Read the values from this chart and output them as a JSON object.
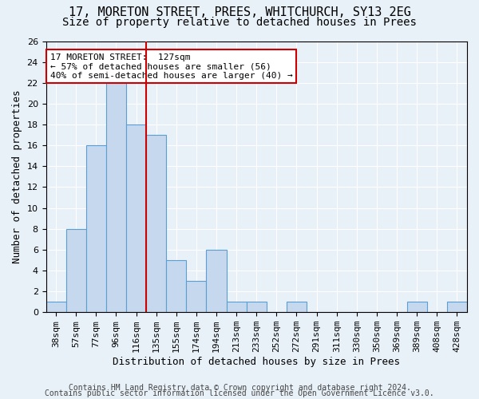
{
  "title": "17, MORETON STREET, PREES, WHITCHURCH, SY13 2EG",
  "subtitle": "Size of property relative to detached houses in Prees",
  "xlabel": "Distribution of detached houses by size in Prees",
  "ylabel": "Number of detached properties",
  "bin_labels": [
    "38sqm",
    "57sqm",
    "77sqm",
    "96sqm",
    "116sqm",
    "135sqm",
    "155sqm",
    "174sqm",
    "194sqm",
    "213sqm",
    "233sqm",
    "252sqm",
    "272sqm",
    "291sqm",
    "311sqm",
    "330sqm",
    "350sqm",
    "369sqm",
    "389sqm",
    "408sqm",
    "428sqm"
  ],
  "bar_values": [
    1,
    8,
    16,
    22,
    18,
    17,
    5,
    3,
    6,
    1,
    1,
    0,
    1,
    0,
    0,
    0,
    0,
    0,
    1,
    0,
    1
  ],
  "bar_color": "#c5d8ed",
  "bar_edge_color": "#5a9fd4",
  "annotation_box_text": "17 MORETON STREET:  127sqm\n← 57% of detached houses are smaller (56)\n40% of semi-detached houses are larger (40) →",
  "annotation_box_color": "#ffffff",
  "annotation_box_edge_color": "#cc0000",
  "vline_color": "#cc0000",
  "vline_x": 4.5,
  "ylim": [
    0,
    26
  ],
  "yticks": [
    0,
    2,
    4,
    6,
    8,
    10,
    12,
    14,
    16,
    18,
    20,
    22,
    24,
    26
  ],
  "footer1": "Contains HM Land Registry data © Crown copyright and database right 2024.",
  "footer2": "Contains public sector information licensed under the Open Government Licence v3.0.",
  "background_color": "#e8f0f8",
  "title_fontsize": 11,
  "subtitle_fontsize": 10,
  "axis_label_fontsize": 9,
  "tick_fontsize": 8,
  "footer_fontsize": 7
}
